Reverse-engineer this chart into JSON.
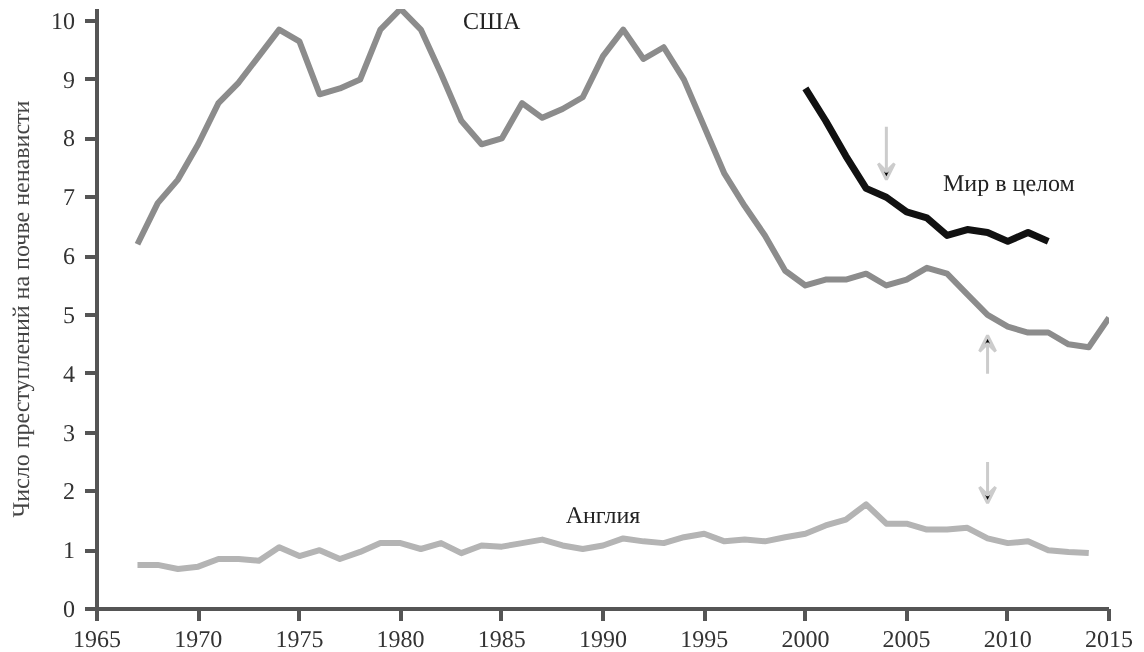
{
  "chart_data": {
    "type": "line",
    "ylabel": "Число преступлений на почве ненависти",
    "xlim": [
      1965,
      2015
    ],
    "xticks": [
      1965,
      1970,
      1975,
      1980,
      1985,
      1990,
      1995,
      2000,
      2005,
      2010,
      2015
    ],
    "ylim": [
      0,
      10.2
    ],
    "yticks": [
      0,
      1,
      2,
      3,
      4,
      5,
      6,
      7,
      8,
      9,
      10
    ],
    "grid": false,
    "legend": false,
    "marker": "none",
    "line_style": "solid",
    "series": [
      {
        "name": "США",
        "color": "#8c8c8c",
        "x": [
          1967,
          1968,
          1969,
          1970,
          1971,
          1972,
          1973,
          1974,
          1975,
          1976,
          1977,
          1978,
          1979,
          1980,
          1981,
          1982,
          1983,
          1984,
          1985,
          1986,
          1987,
          1988,
          1989,
          1990,
          1991,
          1992,
          1993,
          1994,
          1995,
          1996,
          1997,
          1998,
          1999,
          2000,
          2001,
          2002,
          2003,
          2004,
          2005,
          2006,
          2007,
          2008,
          2009,
          2010,
          2011,
          2012,
          2013,
          2014,
          2015
        ],
        "values": [
          6.2,
          6.9,
          7.3,
          7.9,
          8.6,
          8.95,
          9.4,
          9.85,
          9.65,
          8.75,
          8.85,
          9.0,
          9.85,
          10.2,
          9.85,
          9.1,
          8.3,
          7.9,
          8.0,
          8.6,
          8.35,
          8.5,
          8.7,
          9.4,
          9.85,
          9.35,
          9.55,
          9.0,
          8.2,
          7.4,
          6.85,
          6.35,
          5.75,
          5.5,
          5.6,
          5.6,
          5.7,
          5.5,
          5.6,
          5.8,
          5.7,
          5.35,
          5.0,
          4.8,
          4.7,
          4.7,
          4.5,
          4.45,
          4.95
        ]
      },
      {
        "name": "Мир в целом",
        "color": "#111111",
        "x": [
          2000,
          2001,
          2002,
          2003,
          2004,
          2005,
          2006,
          2007,
          2008,
          2009,
          2010,
          2011,
          2012
        ],
        "values": [
          8.85,
          8.3,
          7.7,
          7.15,
          7.0,
          6.75,
          6.65,
          6.35,
          6.45,
          6.4,
          6.25,
          6.4,
          6.25
        ]
      },
      {
        "name": "Англия",
        "color": "#b4b4b4",
        "x": [
          1967,
          1968,
          1969,
          1970,
          1971,
          1972,
          1973,
          1974,
          1975,
          1976,
          1977,
          1978,
          1979,
          1980,
          1981,
          1982,
          1983,
          1984,
          1985,
          1986,
          1987,
          1988,
          1989,
          1990,
          1991,
          1992,
          1993,
          1994,
          1995,
          1996,
          1997,
          1998,
          1999,
          2000,
          2001,
          2002,
          2003,
          2004,
          2005,
          2006,
          2007,
          2008,
          2009,
          2010,
          2011,
          2012,
          2013,
          2014
        ],
        "values": [
          0.75,
          0.75,
          0.68,
          0.72,
          0.85,
          0.85,
          0.82,
          1.05,
          0.9,
          1.0,
          0.85,
          0.97,
          1.12,
          1.12,
          1.02,
          1.12,
          0.95,
          1.08,
          1.06,
          1.12,
          1.18,
          1.08,
          1.02,
          1.08,
          1.2,
          1.15,
          1.12,
          1.22,
          1.28,
          1.15,
          1.18,
          1.15,
          1.22,
          1.28,
          1.42,
          1.52,
          1.78,
          1.45,
          1.45,
          1.35,
          1.35,
          1.38,
          1.2,
          1.12,
          1.15,
          1.0,
          0.97,
          0.95
        ]
      }
    ]
  }
}
